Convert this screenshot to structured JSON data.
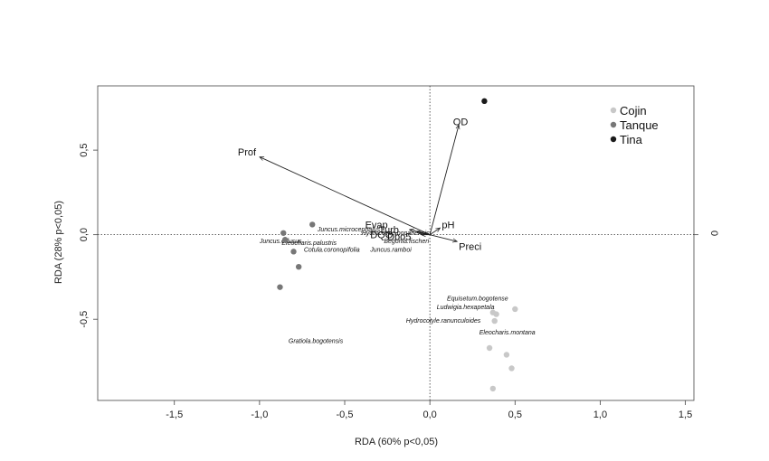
{
  "chart_data": {
    "type": "scatter",
    "title": "",
    "xlabel": "RDA (60% p<0,05)",
    "ylabel": "RDA (28% p<0,05)",
    "xlim": [
      -1.95,
      1.55
    ],
    "ylim": [
      -0.98,
      0.88
    ],
    "xticks": [
      {
        "v": -1.5,
        "label": "-1,5"
      },
      {
        "v": -1.0,
        "label": "-1,0"
      },
      {
        "v": -0.5,
        "label": "-0,5"
      },
      {
        "v": 0.0,
        "label": "0,0"
      },
      {
        "v": 0.5,
        "label": "0,5"
      },
      {
        "v": 1.0,
        "label": "1,0"
      },
      {
        "v": 1.5,
        "label": "1,5"
      }
    ],
    "yticks": [
      {
        "v": -0.5,
        "label": "-0,5"
      },
      {
        "v": 0.0,
        "label": "0,0"
      },
      {
        "v": 0.5,
        "label": "0,5"
      }
    ],
    "right_axis_label": "0",
    "reference_lines": {
      "x": 0,
      "y": 0,
      "style": "dotted"
    },
    "legend": {
      "position": "top-right",
      "entries": [
        {
          "label": "Cojin",
          "color": "#c8c8c8"
        },
        {
          "label": "Tanque",
          "color": "#777777"
        },
        {
          "label": "Tina",
          "color": "#1a1a1a"
        }
      ]
    },
    "series": [
      {
        "name": "Cojin",
        "color": "#c8c8c8",
        "points": [
          [
            0.37,
            -0.46
          ],
          [
            0.39,
            -0.47
          ],
          [
            0.38,
            -0.51
          ],
          [
            0.5,
            -0.44
          ],
          [
            0.35,
            -0.67
          ],
          [
            0.45,
            -0.71
          ],
          [
            0.48,
            -0.79
          ],
          [
            0.37,
            -0.91
          ]
        ]
      },
      {
        "name": "Tanque",
        "color": "#777777",
        "points": [
          [
            -0.69,
            0.06
          ],
          [
            -0.86,
            0.01
          ],
          [
            -0.85,
            -0.03
          ],
          [
            -0.8,
            -0.1
          ],
          [
            -0.77,
            -0.19
          ],
          [
            -0.88,
            -0.31
          ]
        ]
      },
      {
        "name": "Tina",
        "color": "#1a1a1a",
        "points": [
          [
            0.32,
            0.79
          ]
        ]
      }
    ],
    "vectors": [
      {
        "label": "OD",
        "x": 0.17,
        "y": 0.65,
        "lx": 0.18,
        "ly": 0.67,
        "anchor": "middle"
      },
      {
        "label": "Prof",
        "x": -1.0,
        "y": 0.46,
        "lx": -1.02,
        "ly": 0.49,
        "anchor": "end"
      },
      {
        "label": "Preci",
        "x": 0.16,
        "y": -0.04,
        "lx": 0.17,
        "ly": -0.07,
        "anchor": "start"
      },
      {
        "label": "pH",
        "x": 0.06,
        "y": 0.04,
        "lx": 0.07,
        "ly": 0.06,
        "anchor": "start"
      },
      {
        "label": "Evap",
        "x": -0.12,
        "y": 0.03,
        "lx": -0.38,
        "ly": 0.06,
        "anchor": "start"
      },
      {
        "label": "Turb",
        "x": -0.08,
        "y": 0.02,
        "lx": -0.3,
        "ly": 0.03,
        "anchor": "start"
      },
      {
        "label": "DQO",
        "x": -0.06,
        "y": 0.01,
        "lx": -0.35,
        "ly": 0.0,
        "anchor": "start"
      },
      {
        "label": "Dbo5",
        "x": -0.05,
        "y": 0.0,
        "lx": -0.25,
        "ly": -0.01,
        "anchor": "start"
      }
    ],
    "species_labels": [
      {
        "label": "Equisetum.bogotense",
        "x": 0.1,
        "y": -0.38
      },
      {
        "label": "Ludwigia.hexapetala",
        "x": 0.04,
        "y": -0.43
      },
      {
        "label": "Hydrocotyle.ranunculoides",
        "x": -0.14,
        "y": -0.51
      },
      {
        "label": "Eleocharis.montana",
        "x": 0.29,
        "y": -0.58
      },
      {
        "label": "Gratiola.bogotensis",
        "x": -0.83,
        "y": -0.63
      },
      {
        "label": "Juncus.microcephalus",
        "x": -0.66,
        "y": 0.03
      },
      {
        "label": "Juncus.effusus",
        "x": -1.0,
        "y": -0.04
      },
      {
        "label": "Eleocharis.palustris",
        "x": -0.87,
        "y": -0.05
      },
      {
        "label": "Cotula.coronopifolia",
        "x": -0.74,
        "y": -0.09
      },
      {
        "label": "Juncus.ramboi",
        "x": -0.35,
        "y": -0.09
      },
      {
        "label": "Begonia.fischeri",
        "x": -0.27,
        "y": -0.04
      },
      {
        "label": "Hydrocotyle.bonariensis",
        "x": -0.4,
        "y": 0.01
      }
    ]
  }
}
